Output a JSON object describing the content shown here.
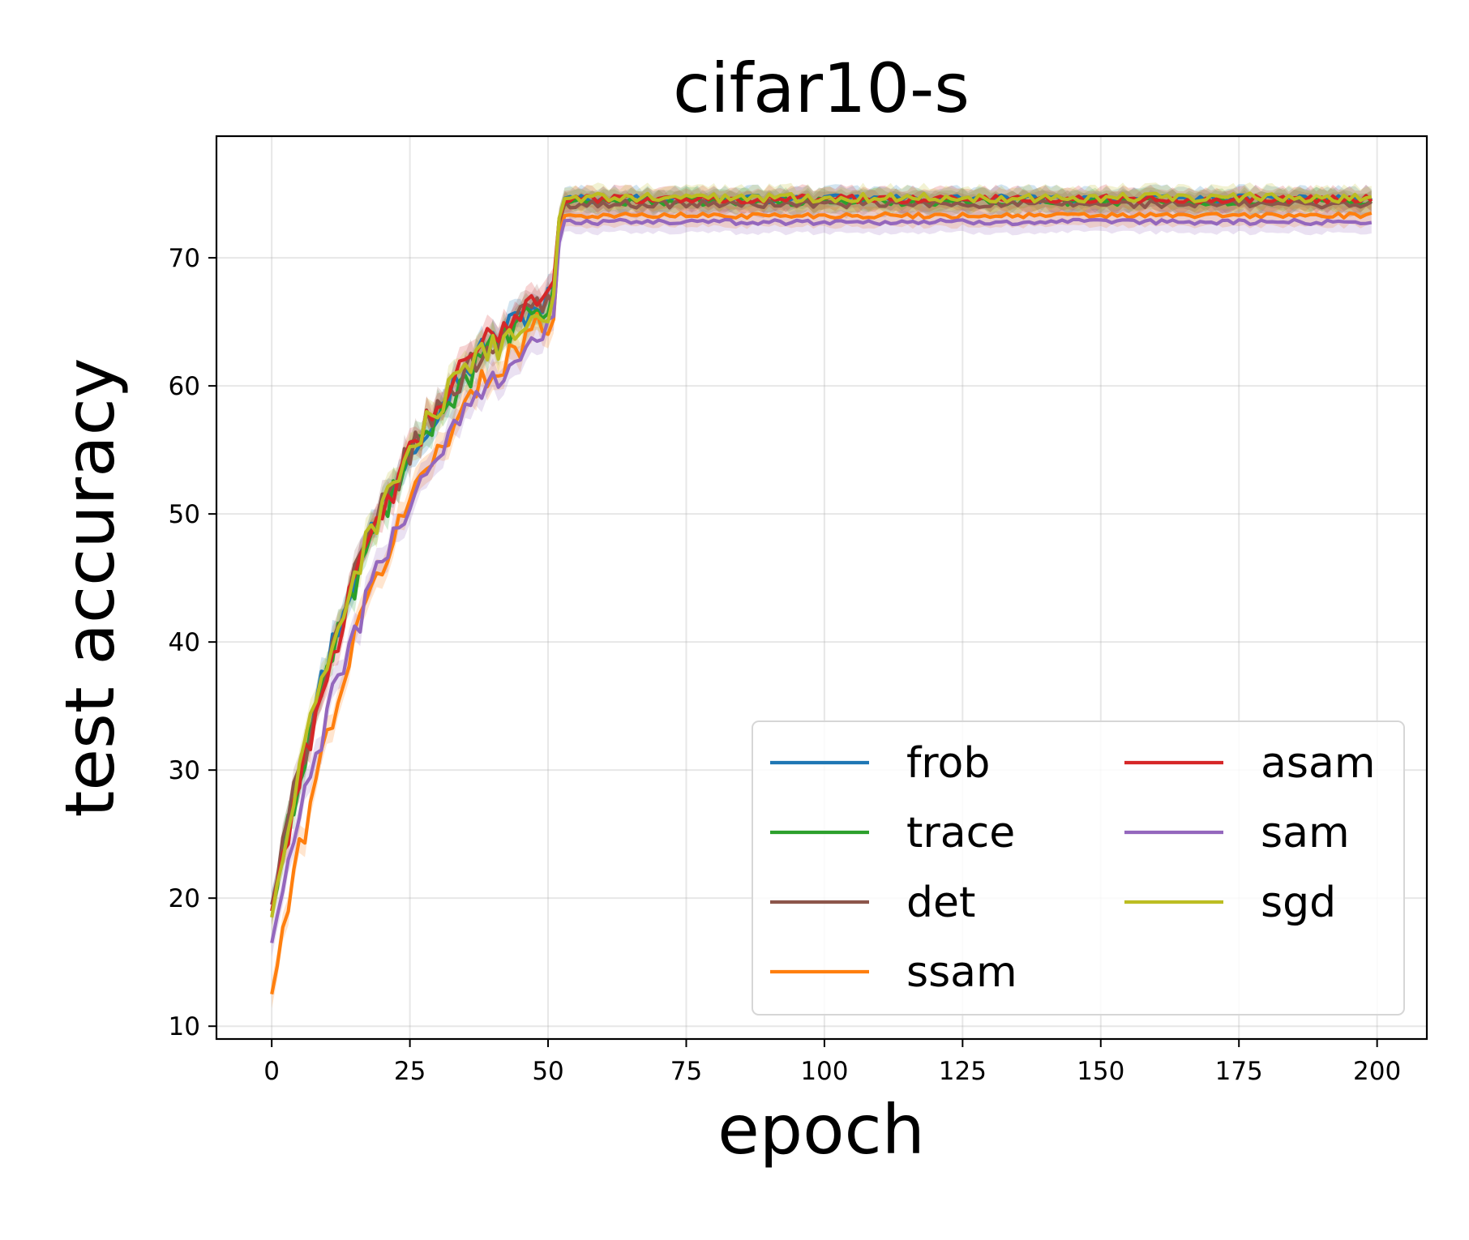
{
  "chart_data": {
    "type": "line",
    "title": "cifar10-s",
    "xlabel": "epoch",
    "ylabel": "test accuracy",
    "xlim": [
      -10,
      209
    ],
    "ylim": [
      9,
      79.5
    ],
    "xticks": [
      0,
      25,
      50,
      75,
      100,
      125,
      150,
      175,
      200
    ],
    "yticks": [
      10,
      20,
      30,
      40,
      50,
      60,
      70
    ],
    "grid": true,
    "legend_location": "lower-right",
    "legend_columns": 2,
    "series": [
      {
        "name": "frob",
        "color": "#1f77b4",
        "start": 19.5,
        "k": 0.044,
        "pre": 67.0,
        "post": 74.6,
        "amp": 0.6
      },
      {
        "name": "trace",
        "color": "#2ca02c",
        "start": 19.0,
        "k": 0.043,
        "pre": 66.5,
        "post": 74.4,
        "amp": 0.6
      },
      {
        "name": "det",
        "color": "#8c564b",
        "start": 19.5,
        "k": 0.043,
        "pre": 67.0,
        "post": 74.2,
        "amp": 0.6
      },
      {
        "name": "ssam",
        "color": "#ff7f0e",
        "start": 12.5,
        "k": 0.04,
        "pre": 65.5,
        "post": 73.3,
        "amp": 0.4
      },
      {
        "name": "asam",
        "color": "#d62728",
        "start": 19.0,
        "k": 0.04,
        "pre": 68.0,
        "post": 74.6,
        "amp": 0.6
      },
      {
        "name": "sam",
        "color": "#9467bd",
        "start": 16.5,
        "k": 0.037,
        "pre": 64.8,
        "post": 72.8,
        "amp": 0.4
      },
      {
        "name": "sgd",
        "color": "#bcbd22",
        "start": 18.5,
        "k": 0.048,
        "pre": 66.0,
        "post": 74.7,
        "amp": 0.7
      }
    ]
  }
}
